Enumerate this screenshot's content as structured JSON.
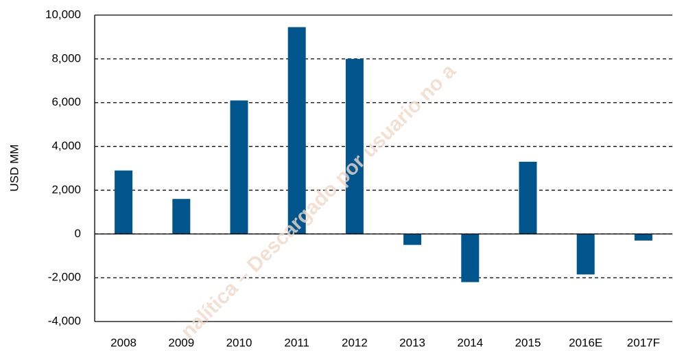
{
  "chart_data": {
    "type": "bar",
    "y_axis_label": "USD MM",
    "watermark": "nalítica – Descargado por usuario no a",
    "categories": [
      "2008",
      "2009",
      "2010",
      "2011",
      "2012",
      "2013",
      "2014",
      "2015",
      "2016E",
      "2017F"
    ],
    "values": [
      2900,
      1600,
      6100,
      9450,
      8000,
      -500,
      -2200,
      3300,
      -1850,
      -300
    ],
    "color": "#00558c",
    "ylim": [
      -4000,
      10000
    ],
    "yticks": [
      {
        "value": -4000,
        "label": "-4,000"
      },
      {
        "value": -2000,
        "label": "-2,000"
      },
      0,
      {
        "value": 2000,
        "label": "2,000"
      },
      {
        "value": 4000,
        "label": "4,000"
      },
      {
        "value": 6000,
        "label": "6,000"
      },
      {
        "value": 8000,
        "label": "8,000"
      },
      {
        "value": 10000,
        "label": "10,000"
      }
    ],
    "grid": true
  }
}
